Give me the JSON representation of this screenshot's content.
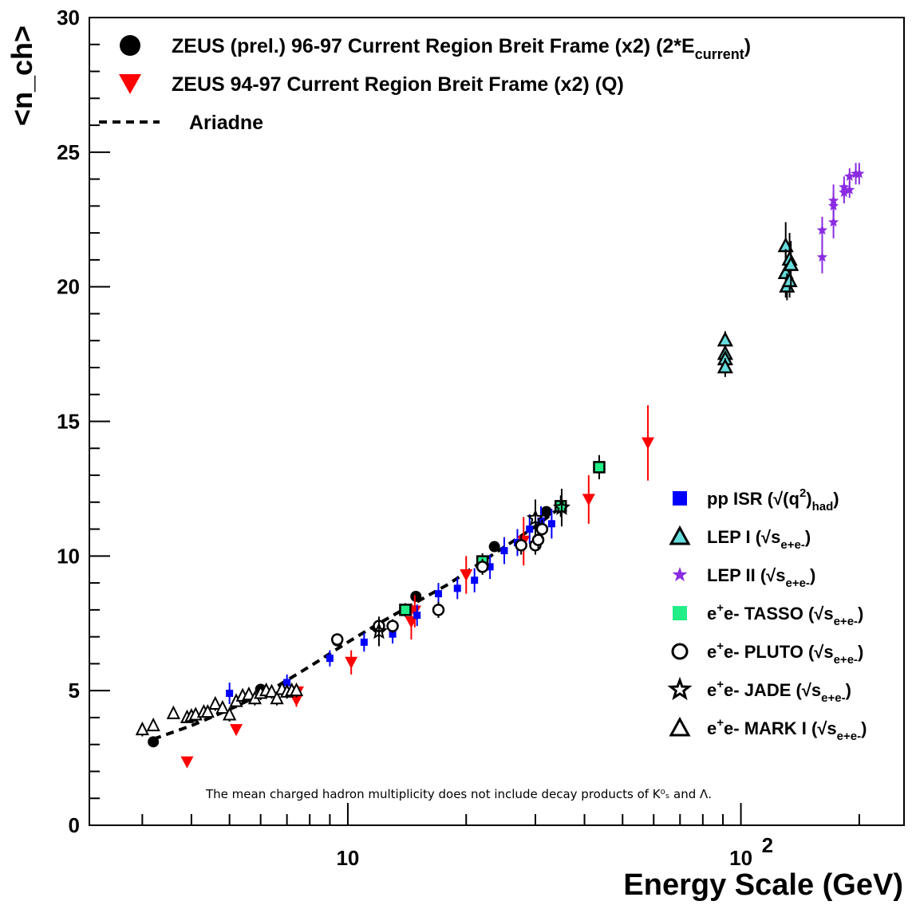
{
  "chart_data": {
    "type": "scatter",
    "title": "",
    "xlabel": "Energy Scale (GeV)",
    "ylabel": "<n_ch>",
    "xscale": "log",
    "xlim": [
      2.2,
      260
    ],
    "ylim": [
      0,
      30
    ],
    "x_tick_labels": [
      {
        "value": 10,
        "base": "10",
        "exp": ""
      },
      {
        "value": 100,
        "base": "10",
        "exp": "2"
      }
    ],
    "y_tick_labels": [
      "0",
      "5",
      "10",
      "15",
      "20",
      "25",
      "30"
    ],
    "legend_top": [
      {
        "id": "zeus_current",
        "text": "ZEUS (prel.) 96-97 Current Region Breit Frame (x2) (2*E",
        "sub": "current",
        "tail": ")"
      },
      {
        "id": "zeus_q",
        "text": "ZEUS 94-97 Current Region Breit Frame (x2) (Q)",
        "sub": "",
        "tail": ""
      },
      {
        "id": "ariadne",
        "text": "Ariadne",
        "sub": "",
        "tail": ""
      }
    ],
    "legend_right": [
      {
        "id": "pp_isr",
        "pre": "pp ISR (√(q",
        "sup": "2",
        "mid": ")",
        "sub": "had",
        "tail": ")"
      },
      {
        "id": "lep1",
        "pre": "LEP I (√s",
        "sup": "",
        "mid": "",
        "sub": "e+e-",
        "tail": ")"
      },
      {
        "id": "lep2",
        "pre": "LEP II (√s",
        "sup": "",
        "mid": "",
        "sub": "e+e-",
        "tail": ")"
      },
      {
        "id": "tasso",
        "pre": "e",
        "sup": "+",
        "mid": "e- TASSO (√s",
        "sub": "e+e-",
        "tail": ")"
      },
      {
        "id": "pluto",
        "pre": "e",
        "sup": "+",
        "mid": "e- PLUTO (√s",
        "sub": "e+e-",
        "tail": ")"
      },
      {
        "id": "jade",
        "pre": "e",
        "sup": "+",
        "mid": "e- JADE (√s",
        "sub": "e+e-",
        "tail": ")"
      },
      {
        "id": "mark1",
        "pre": "e",
        "sup": "+",
        "mid": "e- MARK I (√s",
        "sub": "e+e-",
        "tail": ")"
      }
    ],
    "note": "The mean charged hadron multiplicity does not include decay products of K⁰ₛ and Λ.",
    "colors": {
      "zeus_current": "#000000",
      "zeus_q": "#ff0000",
      "pp_isr": "#0000ff",
      "lep1": "#66dddd",
      "lep2": "#8a2be2",
      "tasso": "#22ee88",
      "ariadne": "#000000"
    },
    "series": [
      {
        "id": "zeus_current",
        "name": "ZEUS (prel.) 96-97 Current Region Breit Frame (x2) (2*Ecurrent)",
        "marker": "circle",
        "x": [
          3.2,
          6.0,
          9.4,
          14.9,
          23.6,
          32.0
        ],
        "y": [
          3.1,
          5.05,
          6.85,
          8.5,
          10.35,
          11.65
        ],
        "err": [
          0.1,
          0.1,
          0.12,
          0.15,
          0.15,
          0.2
        ]
      },
      {
        "id": "zeus_q",
        "name": "ZEUS 94-97 Current Region Breit Frame (x2) (Q)",
        "marker": "triangle-down",
        "x": [
          3.9,
          5.2,
          7.4,
          7.45,
          10.2,
          14.5,
          14.8,
          20.0,
          28.0,
          41.0,
          58.0
        ],
        "y": [
          2.35,
          3.55,
          4.65,
          4.95,
          6.05,
          7.55,
          7.95,
          9.3,
          10.55,
          12.1,
          14.2
        ],
        "err": [
          0.15,
          0.2,
          0.25,
          0.25,
          0.45,
          0.65,
          0.6,
          0.7,
          0.9,
          0.9,
          1.4
        ]
      },
      {
        "id": "pp_isr",
        "name": "pp ISR",
        "marker": "square",
        "x": [
          5.0,
          7.0,
          9.0,
          11.0,
          13.0,
          15.0,
          17.0,
          19.0,
          21.0,
          23.0,
          25.0,
          27.0,
          29.0,
          31.0,
          33.0
        ],
        "y": [
          4.9,
          5.3,
          6.2,
          6.8,
          7.1,
          7.8,
          8.6,
          8.8,
          9.1,
          9.6,
          10.2,
          10.5,
          11.0,
          11.3,
          11.2
        ],
        "err": [
          0.4,
          0.3,
          0.3,
          0.35,
          0.35,
          0.4,
          0.4,
          0.4,
          0.45,
          0.45,
          0.5,
          0.5,
          0.55,
          0.55,
          0.55
        ]
      },
      {
        "id": "lep1",
        "name": "LEP I",
        "marker": "triangle-up",
        "x": [
          91.2,
          91.2,
          91.2,
          91.2,
          130,
          130,
          131,
          133,
          133,
          134
        ],
        "y": [
          18.0,
          17.5,
          17.3,
          17.0,
          21.5,
          20.5,
          20.0,
          21.0,
          20.2,
          20.8
        ],
        "err": [
          0.35,
          0.3,
          0.3,
          0.35,
          0.9,
          0.9,
          0.5,
          1.0,
          0.6,
          0.9
        ]
      },
      {
        "id": "lep2",
        "name": "LEP II",
        "marker": "star",
        "x": [
          161,
          161,
          172,
          172,
          172,
          183,
          183,
          189,
          189,
          196,
          200
        ],
        "y": [
          22.1,
          21.1,
          23.2,
          23.0,
          22.4,
          23.5,
          23.7,
          23.6,
          24.1,
          24.2,
          24.2
        ],
        "err": [
          0.5,
          0.6,
          0.6,
          0.5,
          0.6,
          0.4,
          0.4,
          0.3,
          0.3,
          0.4,
          0.4
        ]
      },
      {
        "id": "tasso",
        "name": "e+e- TASSO",
        "marker": "square-outline",
        "x": [
          14.0,
          22.0,
          34.8,
          43.6
        ],
        "y": [
          8.0,
          9.8,
          11.85,
          13.3
        ],
        "err": [
          0.25,
          0.3,
          0.4,
          0.45
        ]
      },
      {
        "id": "pluto",
        "name": "e+e- PLUTO",
        "marker": "circle-open",
        "x": [
          9.4,
          12.0,
          13.0,
          17.0,
          22.0,
          27.6,
          30.0,
          30.5,
          31.2
        ],
        "y": [
          6.9,
          7.4,
          7.4,
          8.0,
          9.6,
          10.4,
          10.4,
          10.6,
          11.0
        ],
        "err": [
          0.2,
          0.25,
          0.25,
          0.3,
          0.3,
          0.35,
          0.35,
          0.35,
          0.35
        ]
      },
      {
        "id": "jade",
        "name": "e+e- JADE",
        "marker": "star-open",
        "x": [
          12.0,
          30.0,
          35.0
        ],
        "y": [
          7.2,
          11.4,
          11.8
        ],
        "err": [
          0.55,
          0.7,
          0.7
        ]
      },
      {
        "id": "mark1",
        "name": "e+e- MARK I",
        "marker": "triangle-open",
        "x": [
          3.0,
          3.2,
          3.6,
          3.9,
          4.0,
          4.1,
          4.3,
          4.4,
          4.6,
          4.8,
          5.0,
          5.2,
          5.4,
          5.6,
          5.8,
          6.0,
          6.2,
          6.4,
          6.6,
          6.8,
          7.0,
          7.2,
          7.4
        ],
        "y": [
          3.55,
          3.7,
          4.15,
          4.0,
          4.05,
          4.1,
          4.2,
          4.2,
          4.5,
          4.35,
          4.1,
          4.6,
          4.8,
          4.85,
          4.7,
          4.9,
          5.0,
          4.95,
          4.7,
          5.05,
          4.95,
          5.0,
          5.0
        ],
        "err": [
          0.25,
          0.2,
          0.2,
          0.2,
          0.2,
          0.2,
          0.2,
          0.2,
          0.25,
          0.2,
          0.25,
          0.25,
          0.25,
          0.25,
          0.25,
          0.25,
          0.25,
          0.25,
          0.25,
          0.25,
          0.25,
          0.25,
          0.25
        ]
      }
    ],
    "ariadne_curve": {
      "x": [
        3.2,
        4.0,
        5.0,
        6.5,
        8.0,
        10.0,
        12.0,
        15.0,
        18.0,
        22.0,
        26.0,
        30.0,
        34.0
      ],
      "y": [
        3.2,
        3.7,
        4.3,
        5.1,
        5.9,
        6.8,
        7.5,
        8.3,
        8.95,
        9.8,
        10.5,
        11.1,
        11.7
      ]
    }
  }
}
